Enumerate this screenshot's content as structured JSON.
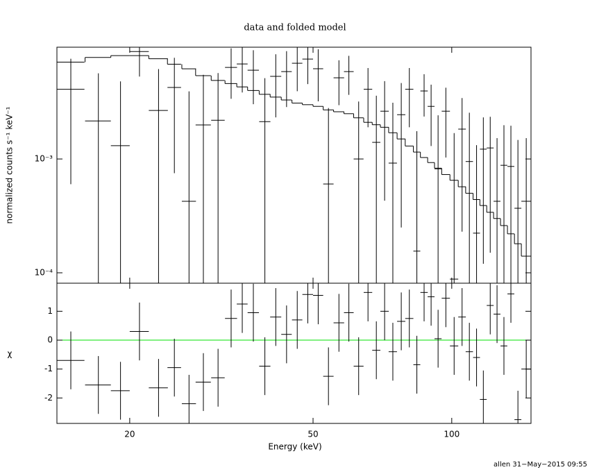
{
  "footer": "allen 31−May−2015 09:55",
  "chart_data": [
    {
      "type": "errorbar",
      "title": "data and folded model",
      "ylabel": "normalized counts s⁻¹ keV⁻¹",
      "xscale": "log",
      "yscale": "log",
      "xlim": [
        13.9,
        148.6
      ],
      "ylim": [
        8.1e-05,
        0.0096
      ],
      "yticks": [
        {
          "value": 0.001,
          "label": "10⁻³"
        },
        {
          "value": 0.0001,
          "label": "10⁻⁴"
        }
      ],
      "color": "#000000",
      "x": [
        14.9,
        17.1,
        19.1,
        21.0,
        23.1,
        25.0,
        26.9,
        28.9,
        31.1,
        33.2,
        35.1,
        37.1,
        39.3,
        41.5,
        43.8,
        46.2,
        48.7,
        51.3,
        54.0,
        56.9,
        59.8,
        62.8,
        65.8,
        68.6,
        71.5,
        74.5,
        77.7,
        80.9,
        84.0,
        87.1,
        90.2,
        93.4,
        97.1,
        101.2,
        105.3,
        109.2,
        113.2,
        117.1,
        121.2,
        125.4,
        129.8,
        134.4,
        139.2,
        145.1
      ],
      "xerr": [
        1.05,
        1.1,
        0.9,
        1.0,
        1.1,
        0.85,
        0.95,
        1.1,
        1.05,
        1.0,
        0.95,
        1.05,
        1.1,
        1.15,
        1.15,
        1.2,
        1.3,
        1.3,
        1.4,
        1.5,
        1.45,
        1.55,
        1.4,
        1.4,
        1.5,
        1.55,
        1.6,
        1.65,
        1.45,
        1.6,
        1.55,
        1.65,
        2.0,
        2.1,
        2.0,
        2.0,
        1.95,
        2.0,
        2.1,
        2.15,
        2.2,
        2.3,
        2.4,
        3.5
      ],
      "values": [
        0.0041,
        0.00216,
        0.00131,
        0.0088,
        0.00267,
        0.00425,
        0.000425,
        0.00199,
        0.00219,
        0.00638,
        0.00684,
        0.00603,
        0.00213,
        0.00532,
        0.00586,
        0.00694,
        0.00755,
        0.00621,
        0.000603,
        0.00517,
        0.00586,
        0.001,
        0.0041,
        0.0014,
        0.00263,
        0.00092,
        0.00245,
        0.0041,
        0.000155,
        0.00396,
        0.0029,
        0.00082,
        0.00263,
        8.8e-05,
        0.00183,
        0.00095,
        0.000223,
        0.00122,
        0.00125,
        0.000425,
        0.00088,
        0.00086,
        0.000369,
        0.000425
      ],
      "yerr": [
        0.0035,
        0.0035,
        0.0035,
        0.0035,
        0.0035,
        0.0035,
        0.0035,
        0.0035,
        0.0035,
        0.003,
        0.003,
        0.003,
        0.003,
        0.003,
        0.003,
        0.003,
        0.003,
        0.003,
        0.0022,
        0.0022,
        0.0022,
        0.0022,
        0.0022,
        0.0022,
        0.0022,
        0.0022,
        0.0022,
        0.0022,
        0.0016,
        0.0016,
        0.0016,
        0.0016,
        0.0016,
        0.0016,
        0.0016,
        0.0016,
        0.0011,
        0.0011,
        0.0011,
        0.0011,
        0.0011,
        0.0011,
        0.0011,
        0.0011
      ],
      "model": {
        "color": "#000000",
        "values": [
          0.0071,
          0.0078,
          0.0081,
          0.0081,
          0.0076,
          0.0068,
          0.0062,
          0.0054,
          0.0049,
          0.0046,
          0.0043,
          0.004,
          0.0037,
          0.0035,
          0.0033,
          0.0031,
          0.003,
          0.0029,
          0.0027,
          0.0026,
          0.0025,
          0.0023,
          0.0021,
          0.002,
          0.0019,
          0.0017,
          0.0015,
          0.0013,
          0.00115,
          0.00103,
          0.00093,
          0.00083,
          0.00073,
          0.00065,
          0.00057,
          0.0005,
          0.00044,
          0.00039,
          0.00034,
          0.0003,
          0.00026,
          0.00022,
          0.00018,
          0.00014
        ]
      }
    },
    {
      "type": "residual",
      "xlabel": "Energy (keV)",
      "ylabel": "χ",
      "xscale": "log",
      "xlim": [
        13.9,
        148.6
      ],
      "ylim": [
        -2.88,
        1.97
      ],
      "xticks": [
        20,
        50,
        100
      ],
      "yticks": [
        -2,
        -1,
        0,
        1
      ],
      "color": "#000000",
      "zero_line_color": "#00e000",
      "x": [
        14.9,
        17.1,
        19.1,
        21.0,
        23.1,
        25.0,
        26.9,
        28.9,
        31.1,
        33.2,
        35.1,
        37.1,
        39.3,
        41.5,
        43.8,
        46.2,
        48.7,
        51.3,
        54.0,
        56.9,
        59.8,
        62.8,
        65.8,
        68.6,
        71.5,
        74.5,
        77.7,
        80.9,
        84.0,
        87.1,
        90.2,
        93.4,
        97.1,
        101.2,
        105.3,
        109.2,
        113.2,
        117.1,
        121.2,
        125.4,
        129.8,
        134.4,
        139.2,
        145.1
      ],
      "xerr": [
        1.05,
        1.1,
        0.9,
        1.0,
        1.1,
        0.85,
        0.95,
        1.1,
        1.05,
        1.0,
        0.95,
        1.05,
        1.1,
        1.15,
        1.15,
        1.2,
        1.3,
        1.3,
        1.4,
        1.5,
        1.45,
        1.55,
        1.4,
        1.4,
        1.5,
        1.55,
        1.6,
        1.65,
        1.45,
        1.6,
        1.55,
        1.65,
        2.0,
        2.1,
        2.0,
        2.0,
        1.95,
        2.0,
        2.1,
        2.15,
        2.2,
        2.3,
        2.4,
        3.5
      ],
      "values": [
        -0.7,
        -1.55,
        -1.75,
        0.3,
        -1.65,
        -0.95,
        -2.2,
        -1.45,
        -1.3,
        0.75,
        1.25,
        0.95,
        -0.9,
        0.8,
        0.2,
        0.7,
        1.58,
        1.55,
        -1.25,
        0.6,
        0.95,
        -0.9,
        1.65,
        -0.35,
        1.0,
        -0.4,
        0.65,
        0.75,
        -0.85,
        1.65,
        1.5,
        0.05,
        1.45,
        -0.2,
        0.8,
        -0.4,
        -0.6,
        -2.05,
        1.2,
        0.9,
        -0.2,
        1.6,
        -2.75,
        -1.0
      ],
      "yerr": [
        1,
        1,
        1,
        1,
        1,
        1,
        1,
        1,
        1,
        1,
        1,
        1,
        1,
        1,
        1,
        1,
        1,
        1,
        1,
        1,
        1,
        1,
        1,
        1,
        1,
        1,
        1,
        1,
        1,
        1,
        1,
        1,
        1,
        1,
        1,
        1,
        1,
        1,
        1,
        1,
        1,
        1,
        1,
        1
      ]
    }
  ]
}
